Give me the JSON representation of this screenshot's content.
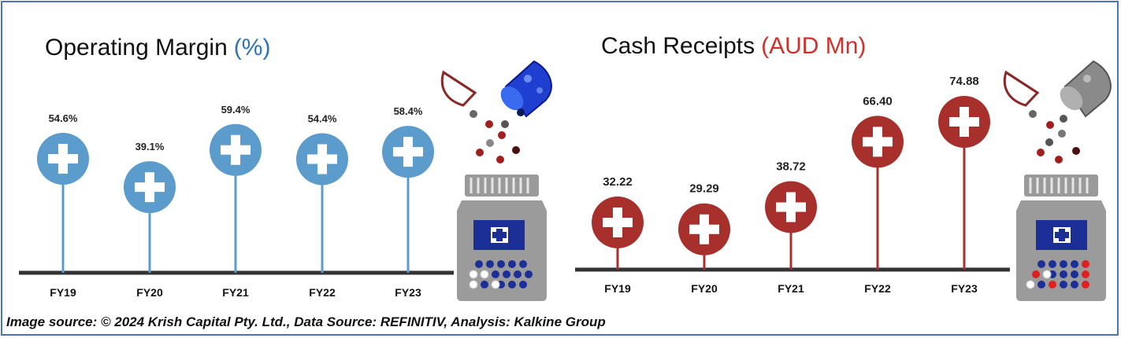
{
  "colors": {
    "margin_accent": "#5b9ccc",
    "receipts_accent": "#a8302c",
    "baseline": "#333333",
    "frame": "#4a74b8"
  },
  "charts": {
    "margin": {
      "title": "Operating Margin",
      "unit": "(%)",
      "unit_color": "#2e74b5"
    },
    "receipts": {
      "title": "Cash Receipts",
      "unit": "(AUD Mn)",
      "unit_color": "#d0312d"
    }
  },
  "chart_data": [
    {
      "type": "lollipop",
      "title": "Operating Margin (%)",
      "categories": [
        "FY19",
        "FY20",
        "FY21",
        "FY22",
        "FY23"
      ],
      "values": [
        54.6,
        39.1,
        59.4,
        54.4,
        58.4
      ],
      "labels": [
        "54.6%",
        "39.1%",
        "59.4%",
        "54.4%",
        "58.4%"
      ],
      "marker": "medical-cross-circle",
      "color": "#5b9ccc"
    },
    {
      "type": "lollipop",
      "title": "Cash Receipts (AUD Mn)",
      "categories": [
        "FY19",
        "FY20",
        "FY21",
        "FY22",
        "FY23"
      ],
      "values": [
        32.22,
        29.29,
        38.72,
        66.4,
        74.88
      ],
      "labels": [
        "32.22",
        "29.29",
        "38.72",
        "66.40",
        "74.88"
      ],
      "marker": "medical-cross-circle",
      "color": "#a8302c"
    }
  ],
  "footer": {
    "source": "Image source: © 2024 Krish Capital Pty. Ltd., Data Source: REFINITIV, Analysis: Kalkine Group"
  }
}
